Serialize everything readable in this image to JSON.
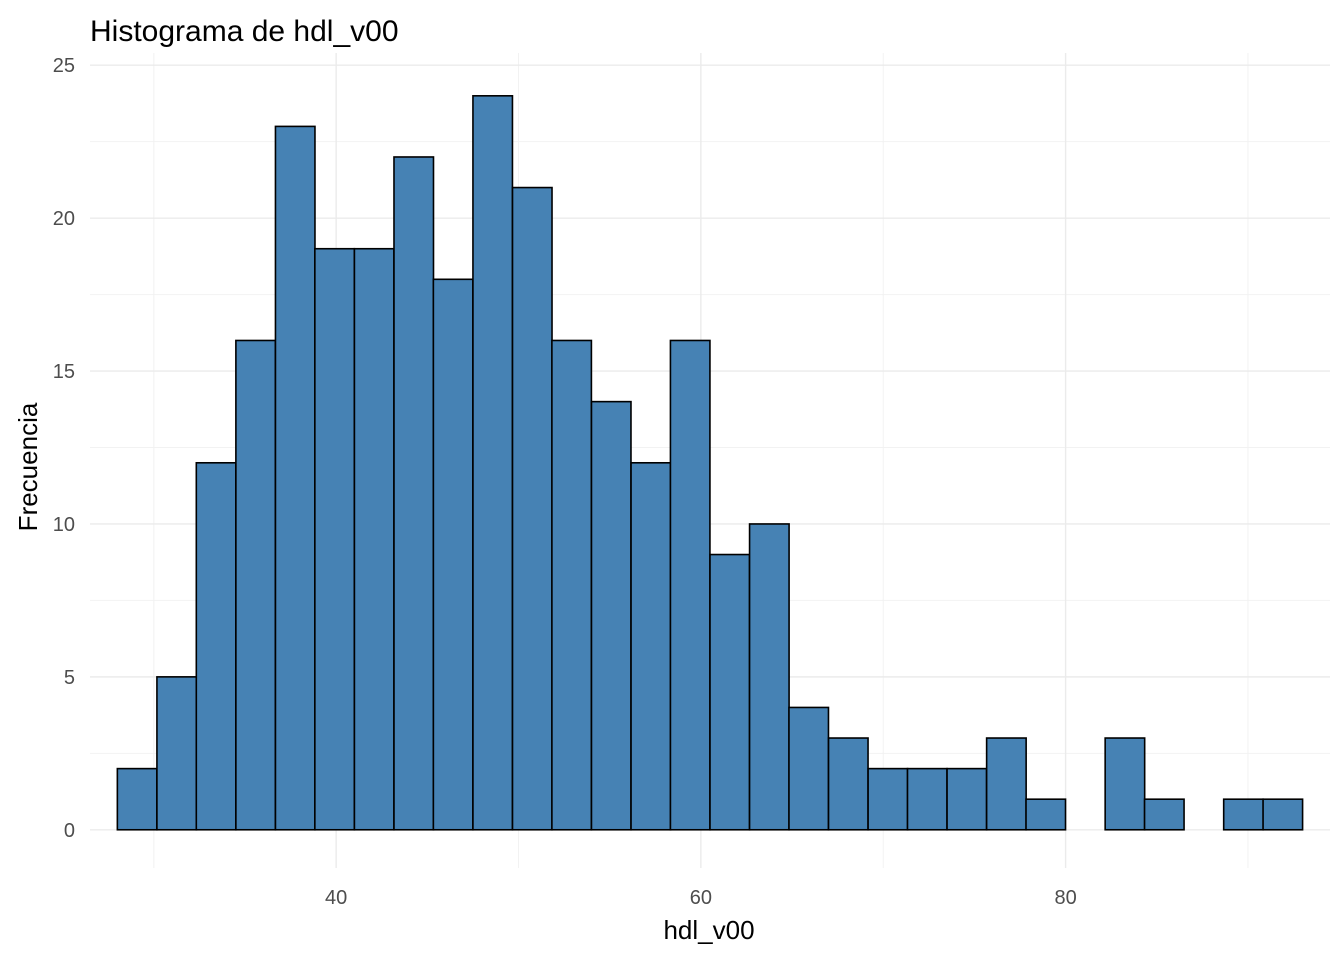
{
  "chart_data": {
    "type": "bar",
    "title": "Histograma de hdl_v00",
    "xlabel": "hdl_v00",
    "ylabel": "Frecuencia",
    "bin_width": 2.1667,
    "bins_start": [
      28.0,
      30.17,
      32.33,
      34.5,
      36.67,
      38.83,
      41.0,
      43.17,
      45.33,
      47.5,
      49.67,
      51.83,
      54.0,
      56.17,
      58.33,
      60.5,
      62.67,
      64.83,
      67.0,
      69.17,
      71.33,
      73.5,
      75.67,
      77.83,
      80.0,
      82.17,
      84.33,
      86.5,
      88.67,
      90.83
    ],
    "values": [
      2,
      5,
      12,
      16,
      23,
      19,
      19,
      22,
      18,
      24,
      21,
      16,
      14,
      12,
      16,
      9,
      10,
      4,
      3,
      2,
      2,
      2,
      3,
      1,
      0,
      3,
      1,
      0,
      1,
      1
    ],
    "xlim": [
      26.5,
      94.5
    ],
    "ylim": [
      -1.25,
      25.4
    ],
    "x_ticks": [
      40,
      60,
      80
    ],
    "x_minor_ticks": [
      30,
      50,
      70,
      90
    ],
    "y_ticks": [
      0,
      5,
      10,
      15,
      20,
      25
    ],
    "y_minor_ticks": [
      2.5,
      7.5,
      12.5,
      17.5,
      22.5
    ],
    "grid": true,
    "fill_color": "#4682b4",
    "edge_color": "#000000"
  }
}
